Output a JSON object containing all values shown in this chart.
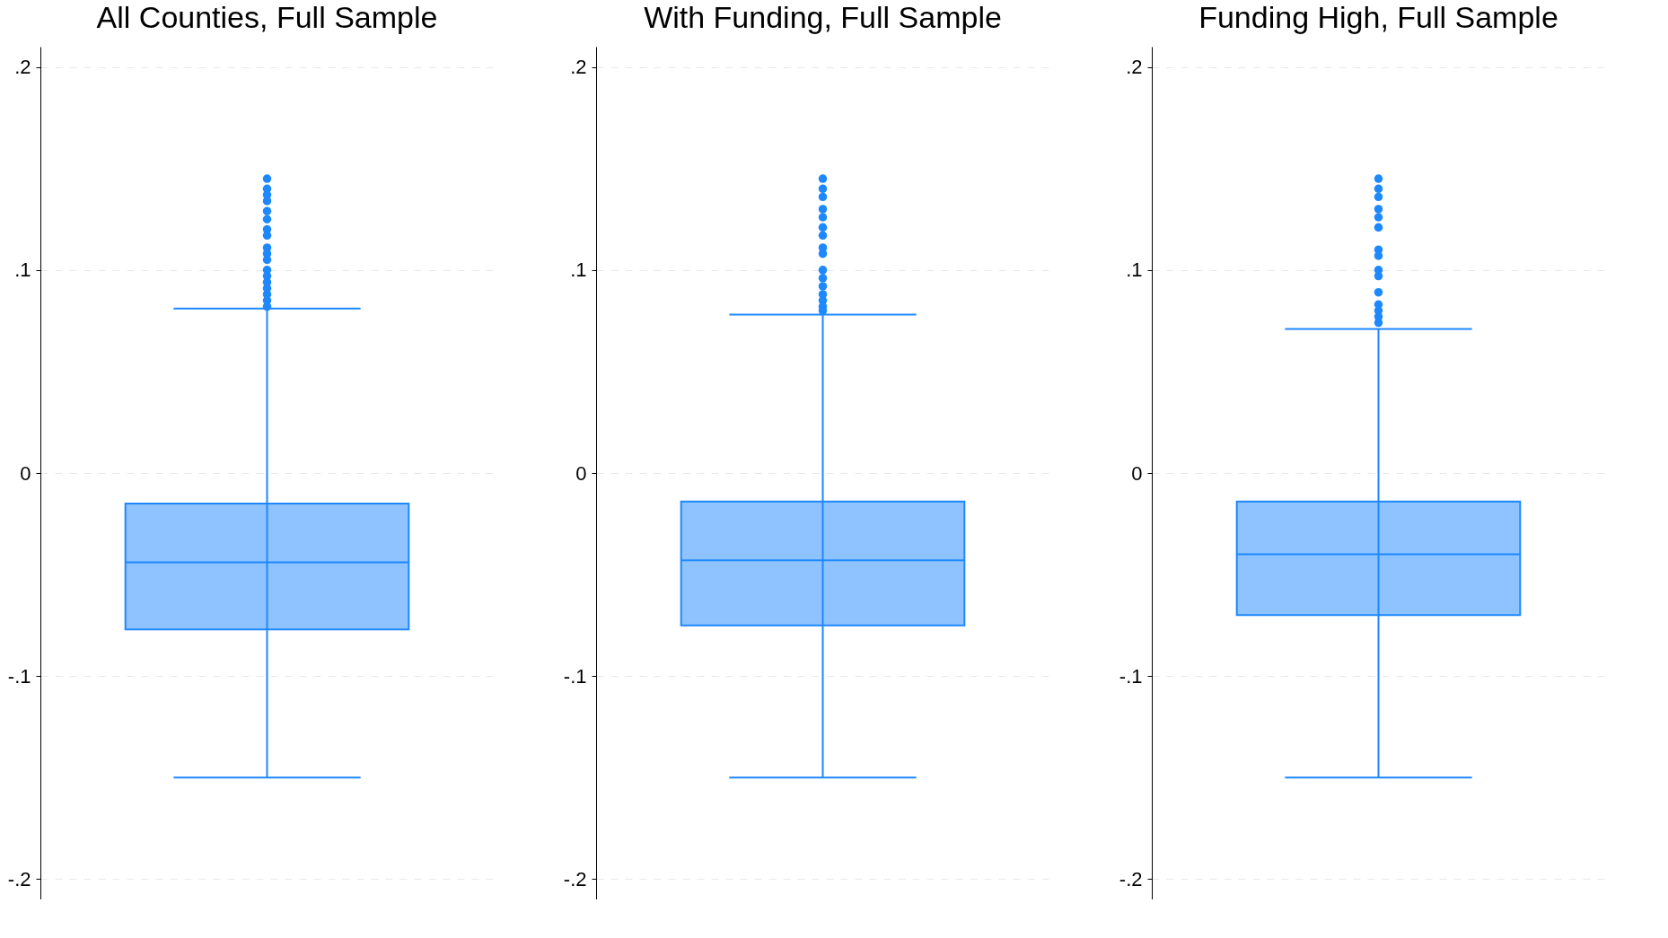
{
  "chart_data": [
    {
      "type": "box",
      "title": "All Counties, Full Sample",
      "categories": [
        null
      ],
      "color": "#1e88ff",
      "ylim": [
        -0.21,
        0.21
      ],
      "yticks": [
        {
          "value": -0.2,
          "label": "-.2"
        },
        {
          "value": -0.1,
          "label": "-.1"
        },
        {
          "value": 0,
          "label": "0"
        },
        {
          "value": 0.1,
          "label": ".1"
        },
        {
          "value": 0.2,
          "label": ".2"
        }
      ],
      "grid": "y",
      "tick_labels": "y",
      "boxes": [
        {
          "low": -0.15,
          "q1": -0.077,
          "median": -0.044,
          "q3": -0.015,
          "high": 0.081,
          "outliers": [
            0.145,
            0.14,
            0.137,
            0.134,
            0.129,
            0.125,
            0.12,
            0.117,
            0.111,
            0.108,
            0.105,
            0.1,
            0.097,
            0.094,
            0.091,
            0.088,
            0.085,
            0.082
          ]
        }
      ]
    },
    {
      "type": "box",
      "title": "With Funding, Full Sample",
      "categories": [
        null
      ],
      "color": "#1e88ff",
      "ylim": [
        -0.21,
        0.21
      ],
      "yticks": [
        {
          "value": -0.2,
          "label": "-.2"
        },
        {
          "value": -0.1,
          "label": "-.1"
        },
        {
          "value": 0,
          "label": "0"
        },
        {
          "value": 0.1,
          "label": ".1"
        },
        {
          "value": 0.2,
          "label": ".2"
        }
      ],
      "grid": "y",
      "tick_labels": "y",
      "boxes": [
        {
          "low": -0.15,
          "q1": -0.075,
          "median": -0.043,
          "q3": -0.014,
          "high": 0.078,
          "outliers": [
            0.145,
            0.14,
            0.136,
            0.13,
            0.126,
            0.121,
            0.117,
            0.111,
            0.108,
            0.1,
            0.096,
            0.092,
            0.088,
            0.085,
            0.082,
            0.08
          ]
        }
      ]
    },
    {
      "type": "box",
      "title": "Funding High, Full Sample",
      "categories": [
        null
      ],
      "color": "#1e88ff",
      "ylim": [
        -0.21,
        0.21
      ],
      "yticks": [
        {
          "value": -0.2,
          "label": "-.2"
        },
        {
          "value": -0.1,
          "label": "-.1"
        },
        {
          "value": 0,
          "label": "0"
        },
        {
          "value": 0.1,
          "label": ".1"
        },
        {
          "value": 0.2,
          "label": ".2"
        }
      ],
      "grid": "y",
      "tick_labels": "y",
      "boxes": [
        {
          "low": -0.15,
          "q1": -0.07,
          "median": -0.04,
          "q3": -0.014,
          "high": 0.071,
          "outliers": [
            0.145,
            0.14,
            0.136,
            0.13,
            0.126,
            0.121,
            0.11,
            0.107,
            0.1,
            0.097,
            0.089,
            0.083,
            0.08,
            0.077,
            0.074
          ]
        }
      ]
    }
  ]
}
